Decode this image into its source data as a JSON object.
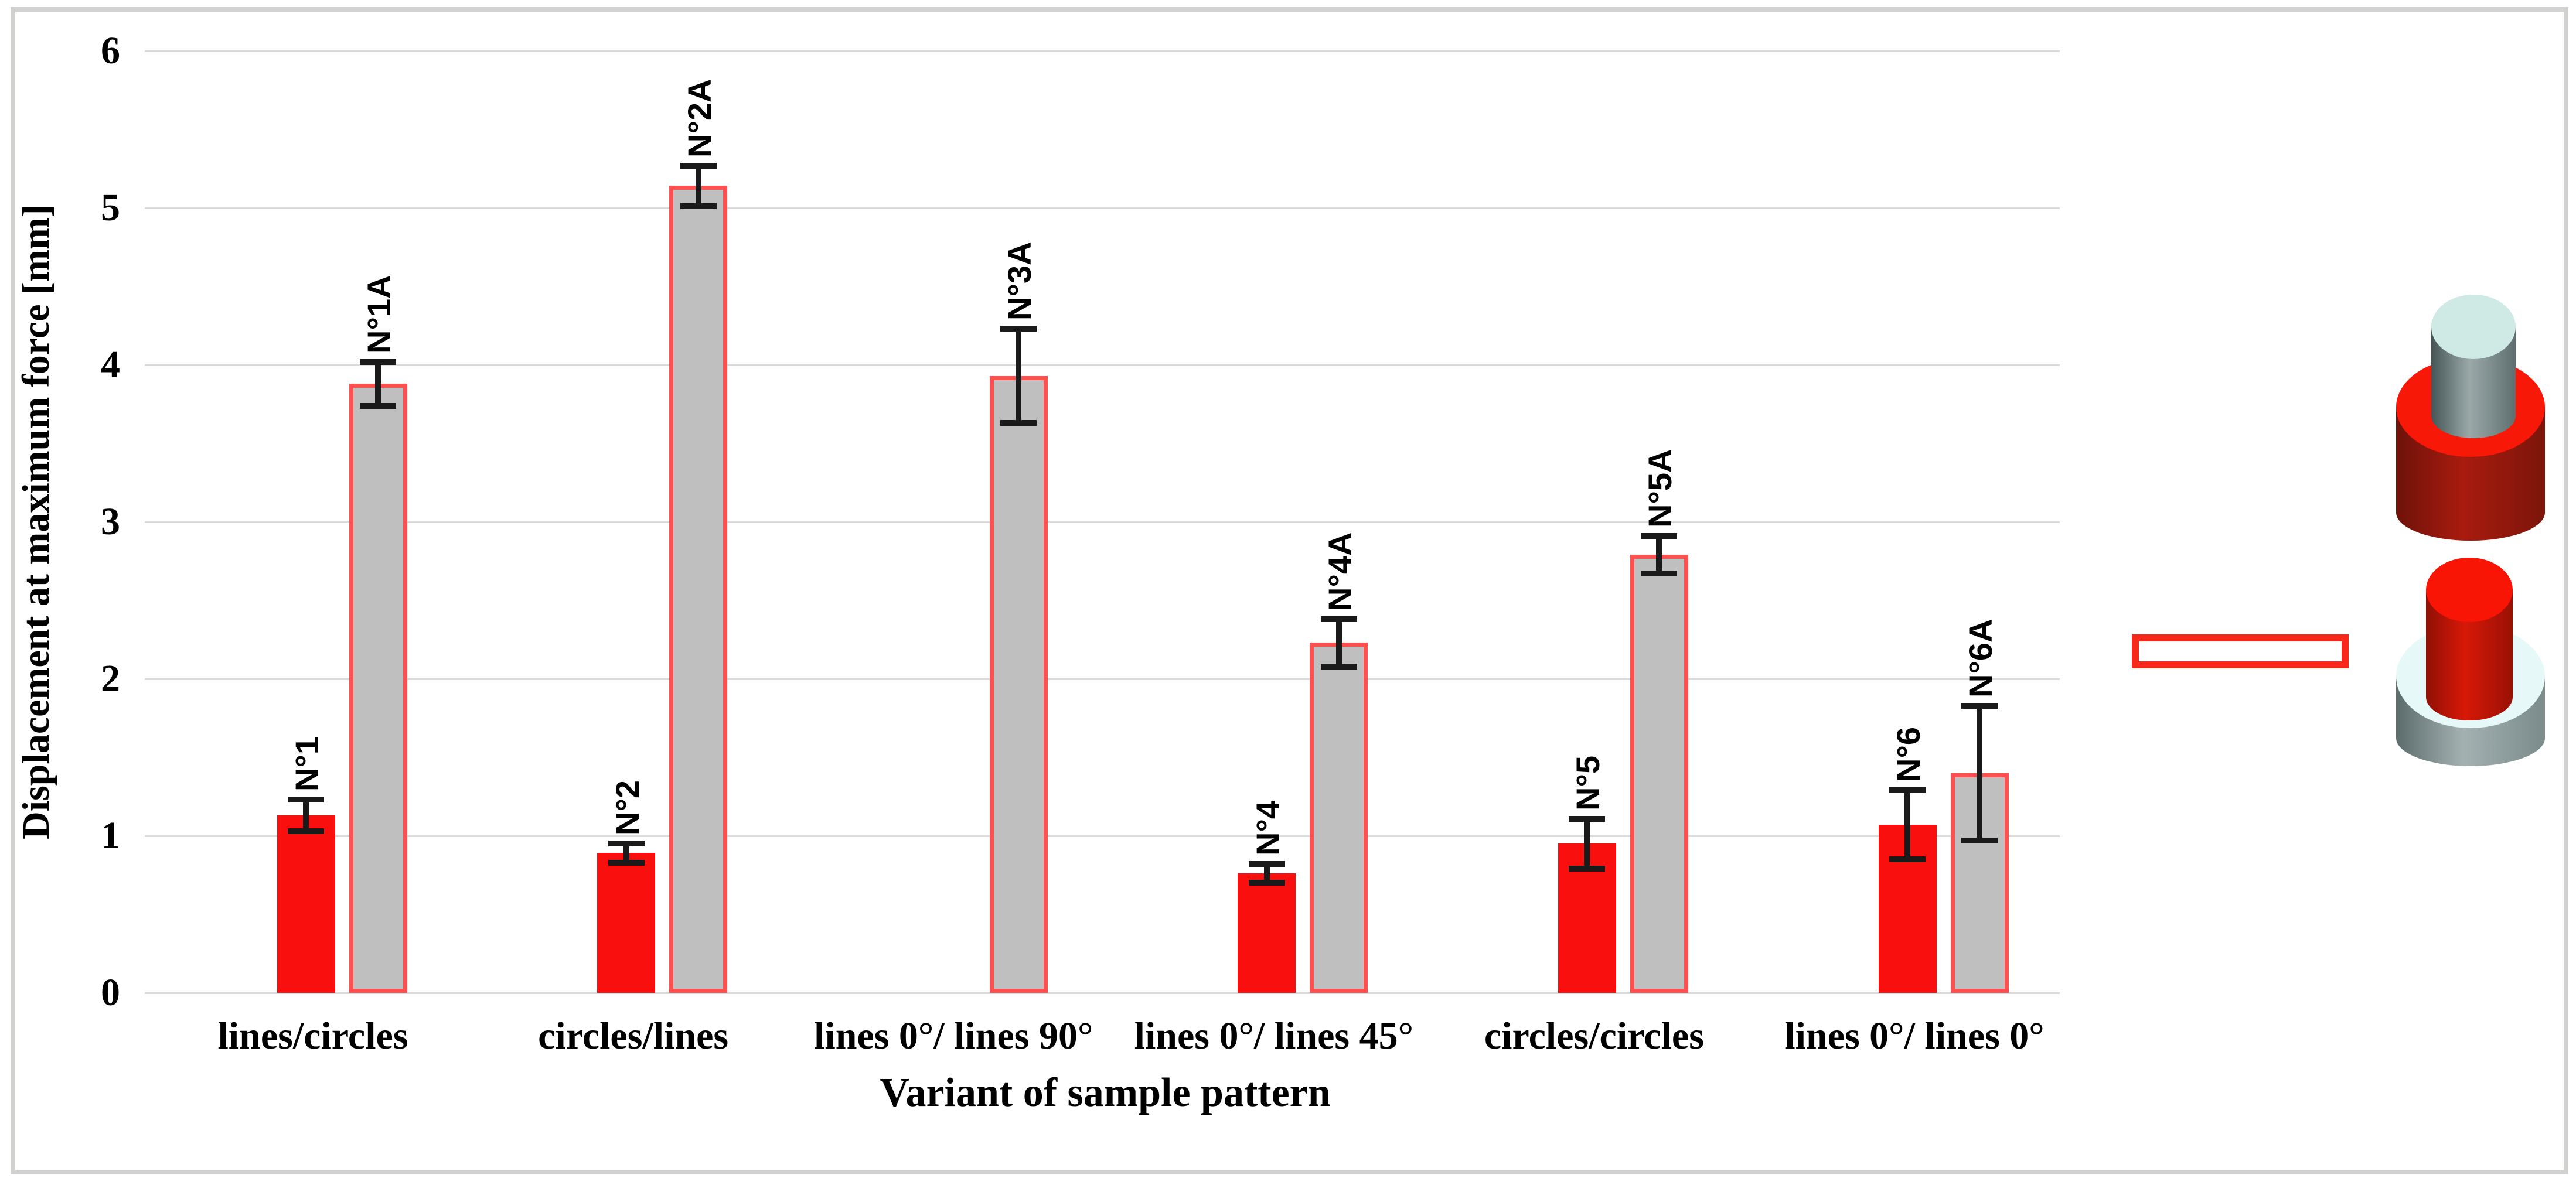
{
  "figure": {
    "colors": {
      "red_bar": "#fa0f0f",
      "gray_bar": "#bfbfbf",
      "gray_bar_outline": "#ff4f4f",
      "gridline": "#d9d9d9",
      "frame_border": "#d1d1cf",
      "error_bar": "#1a1a1a",
      "text": "#000000"
    }
  },
  "chart_data": {
    "type": "bar",
    "title": "",
    "xlabel": "Variant of sample pattern",
    "ylabel": "Displacement at maximum force [mm]",
    "ylim": [
      0,
      6
    ],
    "yticks": [
      "0",
      "1",
      "2",
      "3",
      "4",
      "5",
      "6"
    ],
    "grid": "horizontal",
    "legend_position": "right",
    "categories": [
      "lines/circles",
      "circles/lines",
      "lines 0°/ lines 90°",
      "lines 0°/ lines 45°",
      "circles/circles",
      "lines 0°/ lines 0°"
    ],
    "series": [
      {
        "name": "red-sample-bars",
        "color": "#fa0f0f",
        "values": [
          1.13,
          0.89,
          null,
          0.76,
          0.95,
          1.07
        ],
        "errors": [
          0.1,
          0.06,
          null,
          0.06,
          0.16,
          0.22
        ],
        "point_labels": [
          "N°1",
          "N°2",
          null,
          "N°4",
          "N°5",
          "N°6"
        ]
      },
      {
        "name": "gray-sample-bars",
        "color": "#bfbfbf",
        "outline": "#ff4f4f",
        "values": [
          3.88,
          5.14,
          3.93,
          2.23,
          2.79,
          1.4
        ],
        "errors": [
          0.14,
          0.13,
          0.3,
          0.15,
          0.12,
          0.43
        ],
        "point_labels": [
          "N°1A",
          "N°2A",
          "N°3A",
          "N°4A",
          "N°5A",
          "N°6A"
        ]
      }
    ]
  },
  "legend": {
    "items": [
      {
        "swatch": "solid-red-bar",
        "graphic": "gray-pin-inserted-in-red-base-cylinder"
      },
      {
        "swatch": "gray-bar-red-outline",
        "graphic": "red-pin-inserted-in-gray-base-cylinder"
      }
    ]
  }
}
